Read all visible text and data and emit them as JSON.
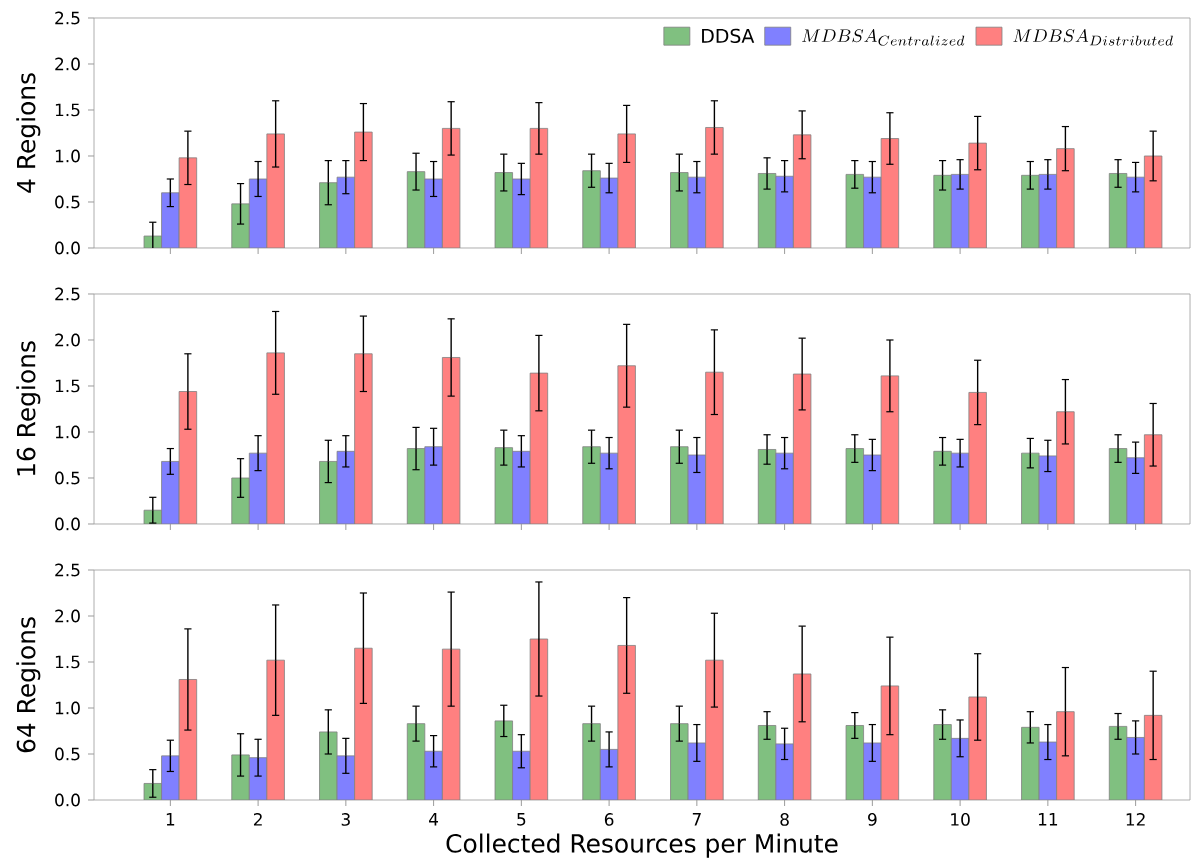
{
  "chart_data": [
    {
      "type": "bar",
      "ylabel": "4 Regions",
      "categories": [
        "1",
        "2",
        "3",
        "4",
        "5",
        "6",
        "7",
        "8",
        "9",
        "10",
        "11",
        "12"
      ],
      "ylim": [
        0,
        2.5
      ],
      "yticks": [
        {
          "value": 0,
          "label": "0.0"
        },
        0.5,
        {
          "value": 1,
          "label": "1.0"
        },
        1.5,
        {
          "value": 2,
          "label": "2.0"
        },
        2.5
      ],
      "tick_labels": "y",
      "legend": "top right",
      "series": [
        {
          "name": "\\mathrm{DDSA}",
          "color": "#80c080",
          "values": [
            0.13,
            0.48,
            0.71,
            0.83,
            0.82,
            0.84,
            0.82,
            0.81,
            0.8,
            0.79,
            0.79,
            0.81
          ],
          "errors": [
            0.15,
            0.22,
            0.24,
            0.2,
            0.2,
            0.18,
            0.2,
            0.17,
            0.15,
            0.16,
            0.15,
            0.15
          ]
        },
        {
          "name": "MDBSA_{Centralized}",
          "color": "#8080ff",
          "values": [
            0.6,
            0.75,
            0.77,
            0.75,
            0.75,
            0.76,
            0.77,
            0.78,
            0.77,
            0.8,
            0.8,
            0.77
          ],
          "errors": [
            0.15,
            0.19,
            0.18,
            0.19,
            0.17,
            0.16,
            0.17,
            0.17,
            0.17,
            0.16,
            0.16,
            0.16
          ]
        },
        {
          "name": "MDBSA_{Distributed}",
          "color": "#ff8080",
          "values": [
            0.98,
            1.24,
            1.26,
            1.3,
            1.3,
            1.24,
            1.31,
            1.23,
            1.19,
            1.14,
            1.08,
            1.0
          ],
          "errors": [
            0.29,
            0.36,
            0.31,
            0.29,
            0.28,
            0.31,
            0.29,
            0.26,
            0.28,
            0.29,
            0.24,
            0.27
          ]
        }
      ]
    },
    {
      "type": "bar",
      "ylabel": "16 Regions",
      "categories": [
        "1",
        "2",
        "3",
        "4",
        "5",
        "6",
        "7",
        "8",
        "9",
        "10",
        "11",
        "12"
      ],
      "ylim": [
        0,
        2.5
      ],
      "yticks": [
        {
          "value": 0,
          "label": "0.0"
        },
        0.5,
        {
          "value": 1,
          "label": "1.0"
        },
        1.5,
        {
          "value": 2,
          "label": "2.0"
        },
        2.5
      ],
      "tick_labels": "y",
      "series": [
        {
          "color": "#80c080",
          "values": [
            0.15,
            0.5,
            0.68,
            0.82,
            0.83,
            0.84,
            0.84,
            0.81,
            0.82,
            0.79,
            0.77,
            0.82
          ],
          "errors": [
            0.14,
            0.21,
            0.23,
            0.23,
            0.19,
            0.18,
            0.18,
            0.16,
            0.15,
            0.15,
            0.16,
            0.15
          ]
        },
        {
          "color": "#8080ff",
          "values": [
            0.68,
            0.77,
            0.79,
            0.84,
            0.79,
            0.77,
            0.75,
            0.77,
            0.75,
            0.77,
            0.74,
            0.72
          ],
          "errors": [
            0.14,
            0.19,
            0.17,
            0.2,
            0.17,
            0.17,
            0.19,
            0.17,
            0.17,
            0.15,
            0.17,
            0.17
          ]
        },
        {
          "color": "#ff8080",
          "values": [
            1.44,
            1.86,
            1.85,
            1.81,
            1.64,
            1.72,
            1.65,
            1.63,
            1.61,
            1.43,
            1.22,
            0.97
          ],
          "errors": [
            0.41,
            0.45,
            0.41,
            0.42,
            0.41,
            0.45,
            0.46,
            0.39,
            0.39,
            0.35,
            0.35,
            0.34
          ]
        }
      ]
    },
    {
      "type": "bar",
      "ylabel": "64 Regions",
      "xlabel": "Collected Resources per Minute",
      "categories": [
        "1",
        "2",
        "3",
        "4",
        "5",
        "6",
        "7",
        "8",
        "9",
        "10",
        "11",
        "12"
      ],
      "ylim": [
        0,
        2.5
      ],
      "yticks": [
        {
          "value": 0,
          "label": "0.0"
        },
        0.5,
        {
          "value": 1,
          "label": "1.0"
        },
        1.5,
        {
          "value": 2,
          "label": "2.0"
        },
        2.5
      ],
      "series": [
        {
          "color": "#80c080",
          "values": [
            0.18,
            0.49,
            0.74,
            0.83,
            0.86,
            0.83,
            0.83,
            0.81,
            0.81,
            0.82,
            0.79,
            0.8
          ],
          "errors": [
            0.15,
            0.23,
            0.24,
            0.19,
            0.17,
            0.19,
            0.19,
            0.15,
            0.14,
            0.16,
            0.17,
            0.14
          ]
        },
        {
          "color": "#8080ff",
          "values": [
            0.48,
            0.46,
            0.48,
            0.53,
            0.53,
            0.55,
            0.62,
            0.61,
            0.62,
            0.67,
            0.63,
            0.68
          ],
          "errors": [
            0.17,
            0.2,
            0.19,
            0.17,
            0.18,
            0.19,
            0.2,
            0.17,
            0.2,
            0.2,
            0.19,
            0.18
          ]
        },
        {
          "color": "#ff8080",
          "values": [
            1.31,
            1.52,
            1.65,
            1.64,
            1.75,
            1.68,
            1.52,
            1.37,
            1.24,
            1.12,
            0.96,
            0.92
          ],
          "errors": [
            0.55,
            0.6,
            0.6,
            0.62,
            0.62,
            0.52,
            0.51,
            0.52,
            0.53,
            0.47,
            0.48,
            0.48
          ]
        }
      ]
    }
  ]
}
